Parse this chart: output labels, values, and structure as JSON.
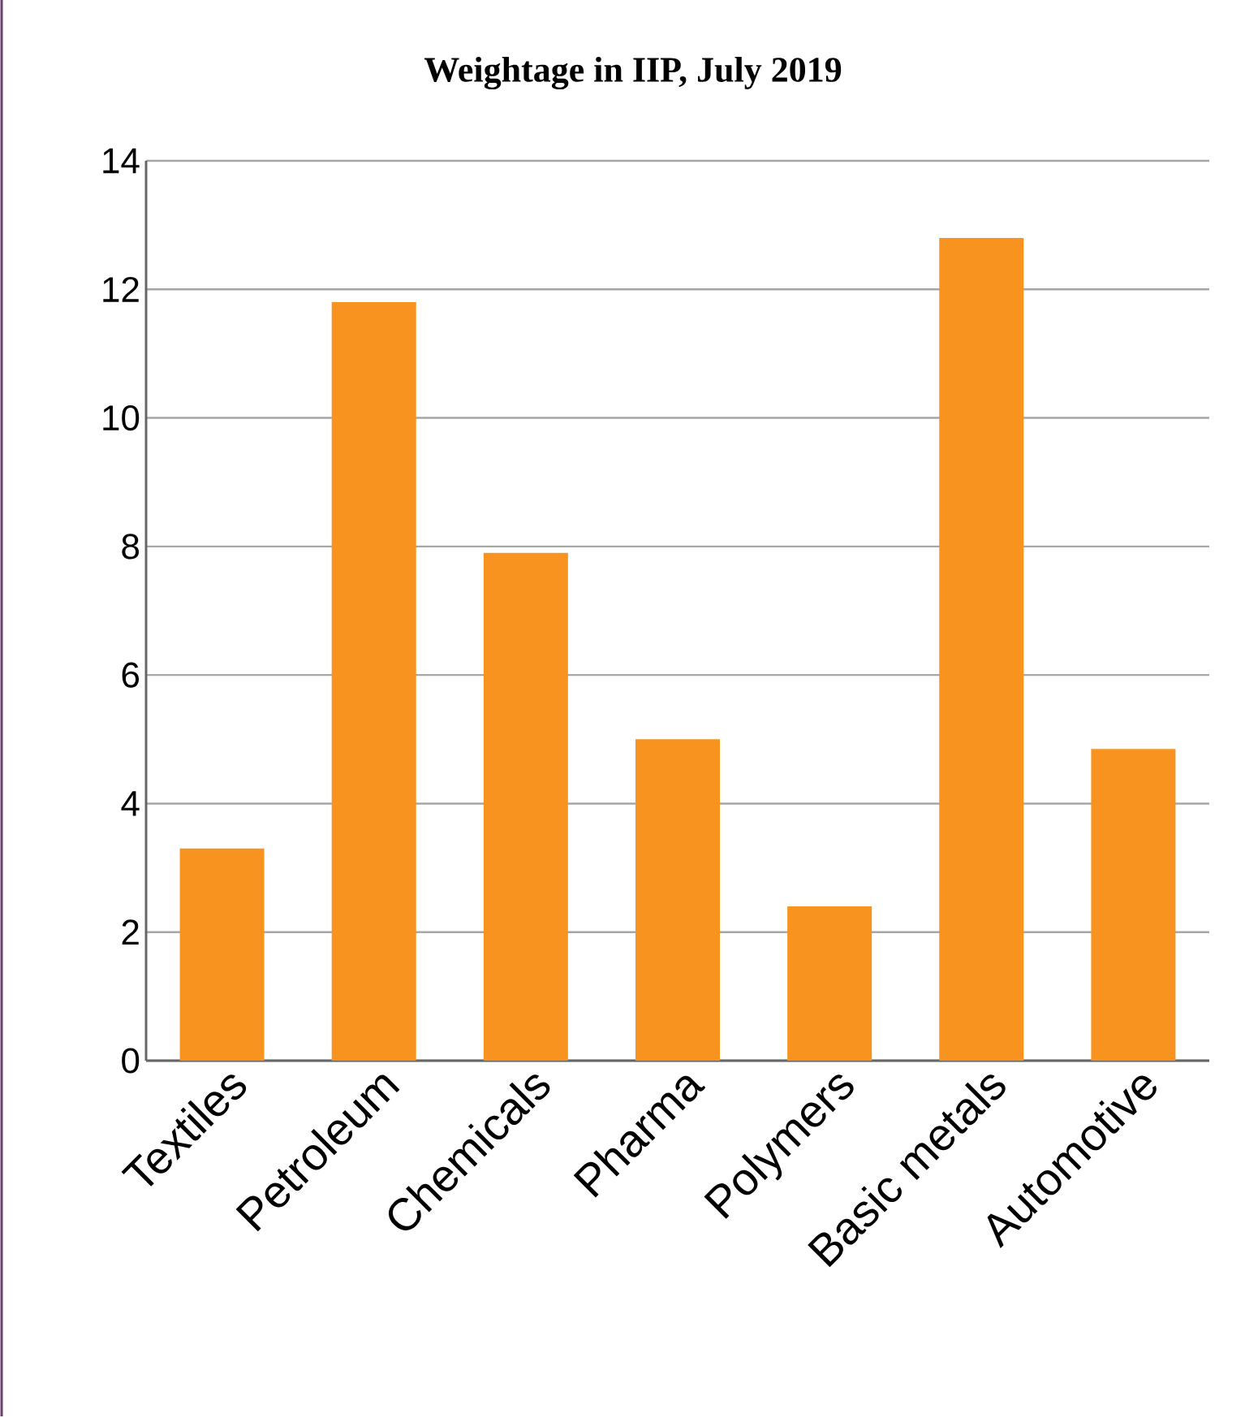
{
  "chart_data": {
    "type": "bar",
    "title": "Weightage in IIP, July 2019",
    "categories": [
      "Textiles",
      "Petroleum",
      "Chemicals",
      "Pharma",
      "Polymers",
      "Basic metals",
      "Automotive"
    ],
    "values": [
      3.3,
      11.8,
      7.9,
      5.0,
      2.4,
      12.8,
      4.85
    ],
    "color": "#f7931e",
    "ylim": [
      0,
      14
    ],
    "yticks": [
      0,
      2,
      4,
      6,
      8,
      10,
      12,
      14
    ],
    "grid": "y"
  }
}
